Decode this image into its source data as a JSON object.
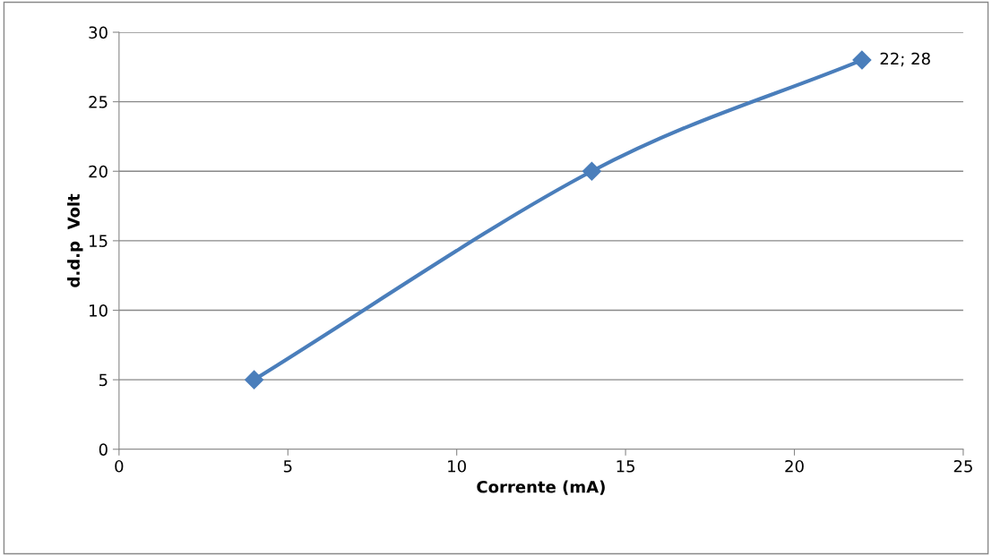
{
  "chart_data": {
    "type": "line",
    "xlabel": "Corrente (mA)",
    "ylabel": "d.d.p  Volt",
    "x": [
      4,
      14,
      22
    ],
    "series": [
      {
        "color": "#4a7ebb",
        "values": [
          5,
          20,
          28
        ]
      }
    ],
    "annotations": [
      {
        "text": "22; 28",
        "x": 22,
        "y": 28
      }
    ],
    "xlim": [
      0,
      25
    ],
    "xticks": [
      0,
      5,
      10,
      15,
      20,
      25
    ],
    "ylim": [
      0,
      30
    ],
    "yticks": [
      0,
      5,
      10,
      15,
      20,
      25,
      30
    ],
    "grid": "y",
    "marker": "diamond",
    "line_style": "solid",
    "legend": false
  }
}
